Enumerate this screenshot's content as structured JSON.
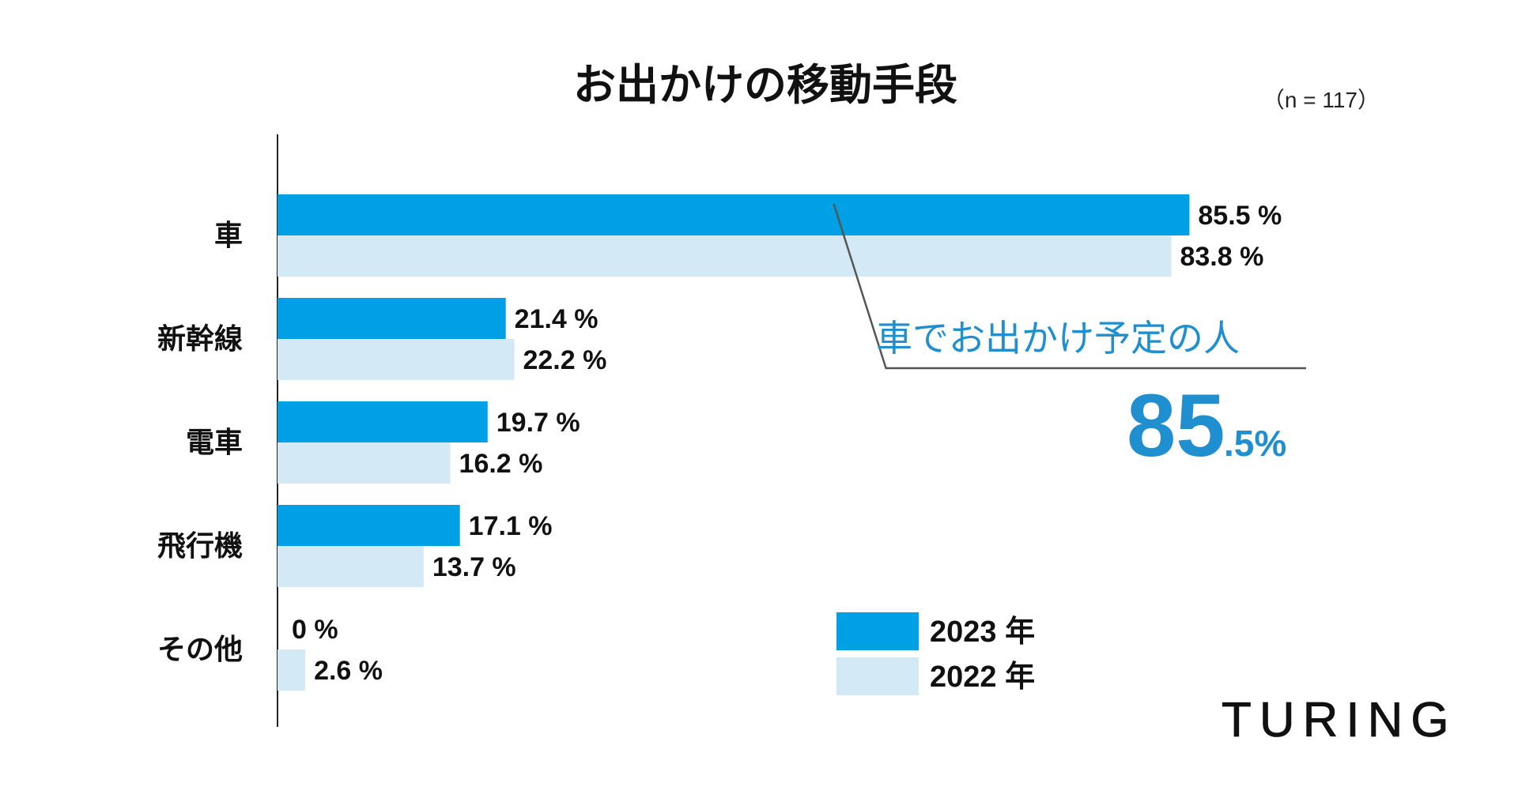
{
  "chart_data": {
    "type": "bar",
    "orientation": "horizontal",
    "title": "お出かけの移動手段",
    "sample_size": "（n = 117）",
    "categories": [
      "車",
      "新幹線",
      "電車",
      "飛行機",
      "その他"
    ],
    "series": [
      {
        "name": "2023 年",
        "color": "#00a0e6",
        "values": [
          85.5,
          21.4,
          19.7,
          17.1,
          0
        ],
        "labels": [
          "85.5 %",
          "21.4 %",
          "19.7 %",
          "17.1 %",
          "0 %"
        ]
      },
      {
        "name": "2022 年",
        "color": "#d3e9f6",
        "values": [
          83.8,
          22.2,
          16.2,
          13.7,
          2.6
        ],
        "labels": [
          "83.8 %",
          "22.2 %",
          "16.2 %",
          "13.7 %",
          "2.6 %"
        ]
      }
    ],
    "xlim": [
      0,
      100
    ],
    "grid": false,
    "legend_position": "bottom-center",
    "annotation": {
      "text": "車でお出かけ予定の人",
      "value_main": "85",
      "value_suffix": ".5%"
    }
  },
  "logo": {
    "text": "TURING"
  },
  "colors": {
    "callout_blue": "#1f8fd0",
    "axis": "#222222"
  }
}
